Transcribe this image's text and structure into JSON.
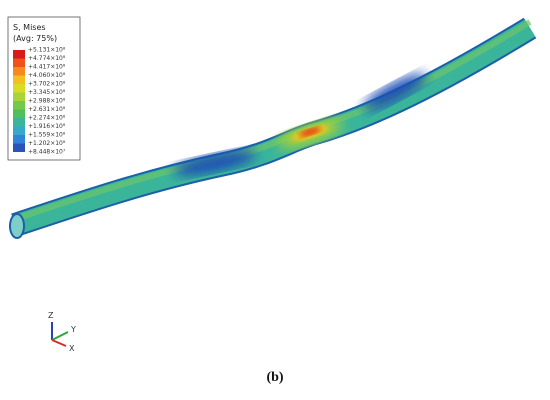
{
  "legend": {
    "title": "S, Mises",
    "subtitle": "(Avg: 75%)",
    "entries": [
      "+5.131×10⁸",
      "+4.774×10⁸",
      "+4.417×10⁸",
      "+4.060×10⁸",
      "+3.702×10⁸",
      "+3.345×10⁸",
      "+2.988×10⁸",
      "+2.631×10⁸",
      "+2.274×10⁸",
      "+1.916×10⁸",
      "+1.559×10⁸",
      "+1.202×10⁸",
      "+8.448×10⁷"
    ]
  },
  "triad": {
    "z": "Z",
    "y": "Y",
    "x": "X"
  },
  "caption": "(b)"
}
